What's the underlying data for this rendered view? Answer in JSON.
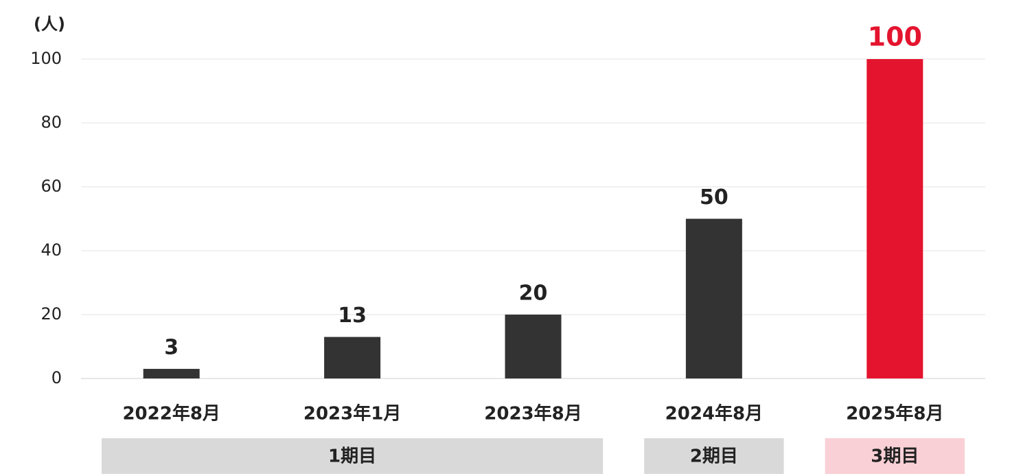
{
  "chart_data": {
    "type": "bar",
    "y_unit": "(人)",
    "categories": [
      "2022年8月",
      "2023年1月",
      "2023年8月",
      "2024年8月",
      "2025年8月"
    ],
    "values": [
      3,
      13,
      20,
      50,
      100
    ],
    "colors": [
      "#333333",
      "#333333",
      "#333333",
      "#333333",
      "#e4142e"
    ],
    "ylim": [
      0,
      100
    ],
    "yticks": [
      0,
      20,
      40,
      60,
      80,
      100
    ],
    "grid": true,
    "groups": [
      {
        "label": "1期目",
        "members": [
          "2022年8月",
          "2023年1月",
          "2023年8月"
        ],
        "color": "#d9d9d9"
      },
      {
        "label": "2期目",
        "members": [
          "2024年8月"
        ],
        "color": "#d9d9d9"
      },
      {
        "label": "3期目",
        "members": [
          "2025年8月"
        ],
        "color": "#f9d0d6"
      }
    ]
  }
}
